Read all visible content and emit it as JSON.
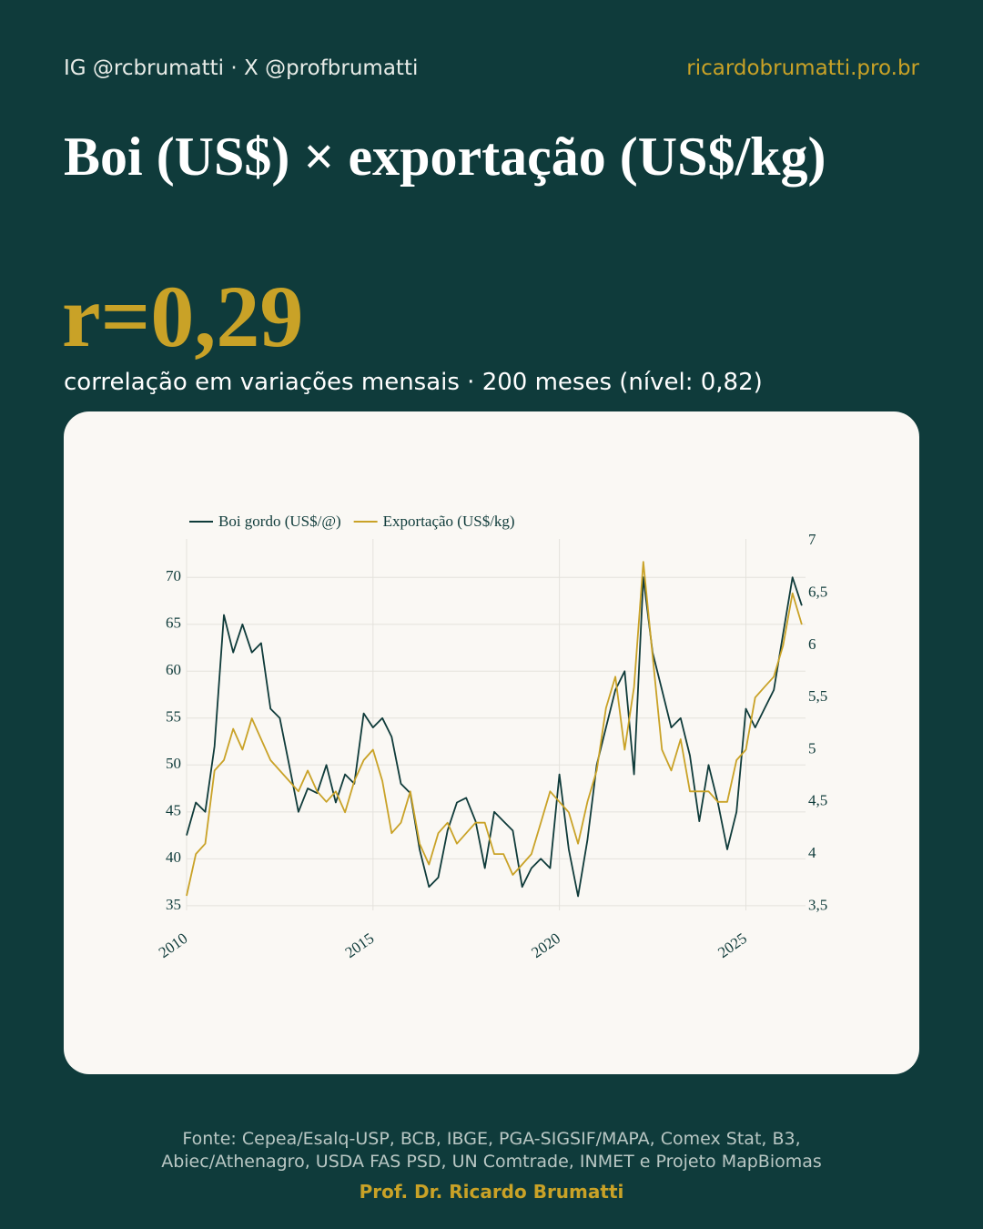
{
  "header": {
    "handles": "IG @rcbrumatti · X @profbrumatti",
    "site": "ricardobrumatti.pro.br"
  },
  "title": "Boi (US$) × exportação (US$/kg)",
  "stat": "r=0,29",
  "subtitle": "correlação em variações mensais · 200 meses (nível: 0,82)",
  "footer": {
    "source_lines": [
      "Fonte: Cepea/Esalq-USP, BCB, IBGE, PGA-SIGSIF/MAPA, Comex Stat, B3,",
      "Abiec/Athenagro, USDA FAS PSD, UN Comtrade, INMET e Projeto MapBiomas"
    ],
    "author": "Prof. Dr. Ricardo Brumatti"
  },
  "chart_data": {
    "type": "line",
    "x": [
      2010,
      2010.25,
      2010.5,
      2010.75,
      2011,
      2011.25,
      2011.5,
      2011.75,
      2012,
      2012.25,
      2012.5,
      2012.75,
      2013,
      2013.25,
      2013.5,
      2013.75,
      2014,
      2014.25,
      2014.5,
      2014.75,
      2015,
      2015.25,
      2015.5,
      2015.75,
      2016,
      2016.25,
      2016.5,
      2016.75,
      2017,
      2017.25,
      2017.5,
      2017.75,
      2018,
      2018.25,
      2018.5,
      2018.75,
      2019,
      2019.25,
      2019.5,
      2019.75,
      2020,
      2020.25,
      2020.5,
      2020.75,
      2021,
      2021.25,
      2021.5,
      2021.75,
      2022,
      2022.25,
      2022.5,
      2022.75,
      2023,
      2023.25,
      2023.5,
      2023.75,
      2024,
      2024.25,
      2024.5,
      2024.75,
      2025,
      2025.25,
      2025.5,
      2025.75,
      2026,
      2026.25,
      2026.5
    ],
    "series": [
      {
        "name": "Boi gordo (US$/@)",
        "color": "#0f3b3a",
        "axis": "y",
        "values": [
          42.5,
          46,
          45,
          52,
          66,
          62,
          65,
          62,
          63,
          56,
          55,
          50,
          45,
          47.5,
          47,
          50,
          46,
          49,
          48,
          55.5,
          54,
          55,
          53,
          48,
          47,
          41,
          37,
          38,
          43,
          46,
          46.5,
          44,
          39,
          45,
          44,
          43,
          37,
          39,
          40,
          39,
          49,
          41,
          36,
          42,
          50,
          54,
          58,
          60,
          49,
          70,
          62,
          58,
          54,
          55,
          51,
          44,
          50,
          46,
          41,
          45,
          56,
          54,
          56,
          58,
          64,
          70,
          67
        ]
      },
      {
        "name": "Exportação (US$/kg)",
        "color": "#c9a227",
        "axis": "y2",
        "values": [
          3.6,
          4.0,
          4.1,
          4.8,
          4.9,
          5.2,
          5.0,
          5.3,
          5.1,
          4.9,
          4.8,
          4.7,
          4.6,
          4.8,
          4.6,
          4.5,
          4.6,
          4.4,
          4.7,
          4.9,
          5.0,
          4.7,
          4.2,
          4.3,
          4.6,
          4.1,
          3.9,
          4.2,
          4.3,
          4.1,
          4.2,
          4.3,
          4.3,
          4.0,
          4.0,
          3.8,
          3.9,
          4.0,
          4.3,
          4.6,
          4.5,
          4.4,
          4.1,
          4.5,
          4.8,
          5.4,
          5.7,
          5.0,
          5.6,
          6.8,
          5.9,
          5.0,
          4.8,
          5.1,
          4.6,
          4.6,
          4.6,
          4.5,
          4.5,
          4.9,
          5.0,
          5.5,
          5.6,
          5.7,
          6.0,
          6.5,
          6.2
        ]
      }
    ],
    "xlim": [
      2010,
      2026.6
    ],
    "xticks": [
      2010,
      2015,
      2020,
      2025
    ],
    "ylim": [
      34.5,
      74.1
    ],
    "yticks": [
      35,
      40,
      45,
      50,
      55,
      60,
      65,
      70
    ],
    "y2lim": [
      3.46,
      7.02
    ],
    "y2ticks": [
      {
        "value": 3.5,
        "label": "3,5"
      },
      4,
      {
        "value": 4.5,
        "label": "4,5"
      },
      5,
      {
        "value": 5.5,
        "label": "5,5"
      },
      6,
      {
        "value": 6.5,
        "label": "6,5"
      },
      7
    ],
    "grid": true
  }
}
